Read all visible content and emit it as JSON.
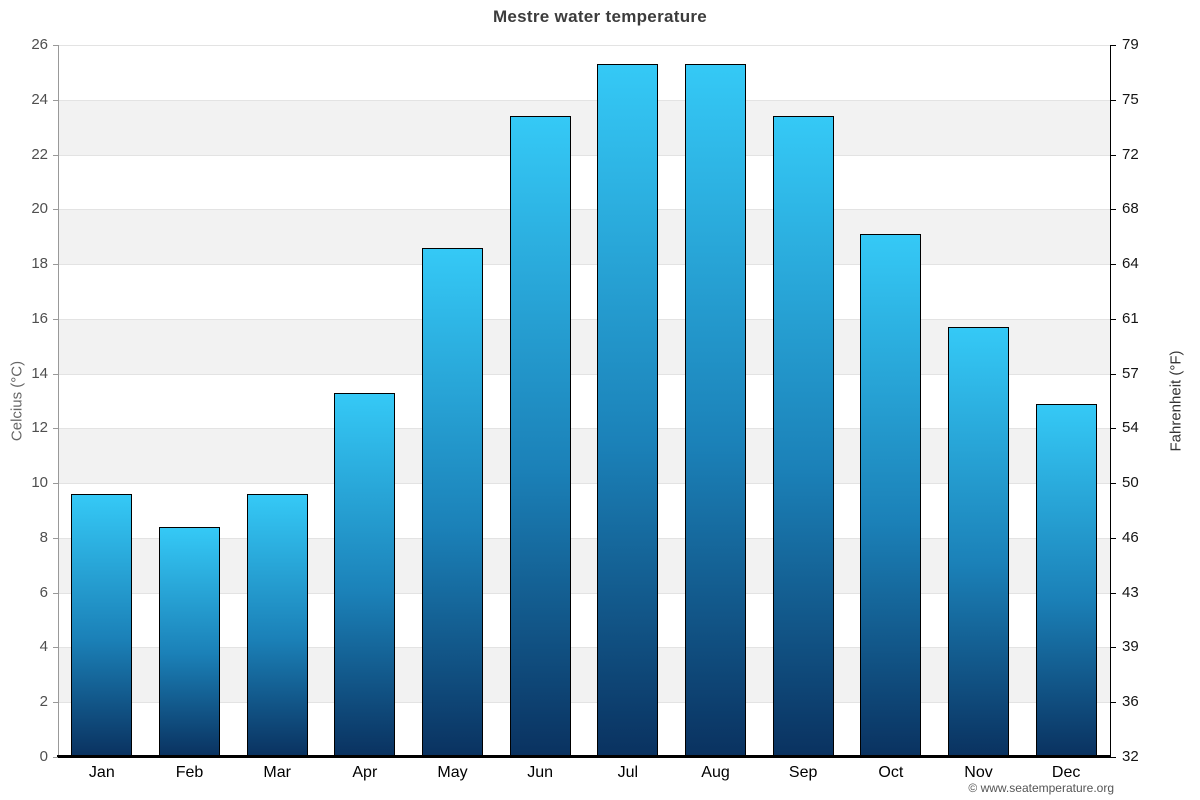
{
  "page": {
    "copyright": "© www.seatemperature.org"
  },
  "chart_data": {
    "type": "bar",
    "title": "Mestre water temperature",
    "ylabel_left": "Celcius (°C)",
    "ylabel_right": "Fahrenheit (°F)",
    "unit": "°C",
    "ylim": [
      0,
      26
    ],
    "grid": "horizontal-bands-alternating",
    "legend": "none",
    "categories": [
      "Jan",
      "Feb",
      "Mar",
      "Apr",
      "May",
      "Jun",
      "Jul",
      "Aug",
      "Sep",
      "Oct",
      "Nov",
      "Dec"
    ],
    "values": [
      9.6,
      8.4,
      9.6,
      13.3,
      18.6,
      23.4,
      25.3,
      25.3,
      23.4,
      19.1,
      15.7,
      12.9
    ],
    "yticks_celsius": [
      26,
      24,
      22,
      20,
      18,
      16,
      14,
      12,
      10,
      8,
      6,
      4,
      2,
      0
    ],
    "yticks_fahrenheit": [
      79,
      75,
      72,
      68,
      64,
      61,
      57,
      54,
      50,
      46,
      43,
      39,
      36,
      32
    ],
    "colors": {
      "bar_gradient_top": "#35c9f6",
      "bar_gradient_mid": "#1b81b8",
      "bar_gradient_bottom": "#0a3260",
      "bar_border": "#000000",
      "band_fill": "#f2f2f2",
      "gridline": "#e3e3e3",
      "title_text": "#3c3c3c"
    }
  }
}
